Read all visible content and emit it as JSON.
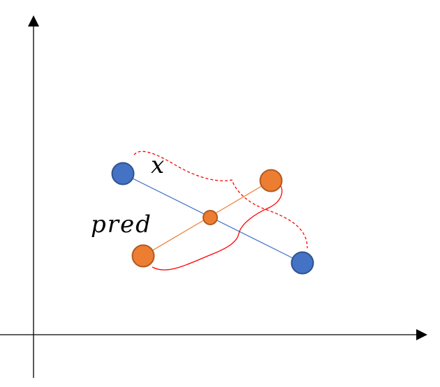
{
  "labels": {
    "x": "x",
    "pred": "pred"
  },
  "colors": {
    "background": "#ffffff",
    "axis": "#000000",
    "blue_fill": "#4472c4",
    "blue_stroke": "#2f528f",
    "blue_line": "#4472c4",
    "orange_fill": "#ed7d31",
    "orange_stroke": "#ae5a21",
    "orange_line": "#ed7d31",
    "brace": "#ff0000"
  },
  "icons": {
    "x_axis_arrow": "arrow-right",
    "y_axis_arrow": "arrow-up"
  }
}
